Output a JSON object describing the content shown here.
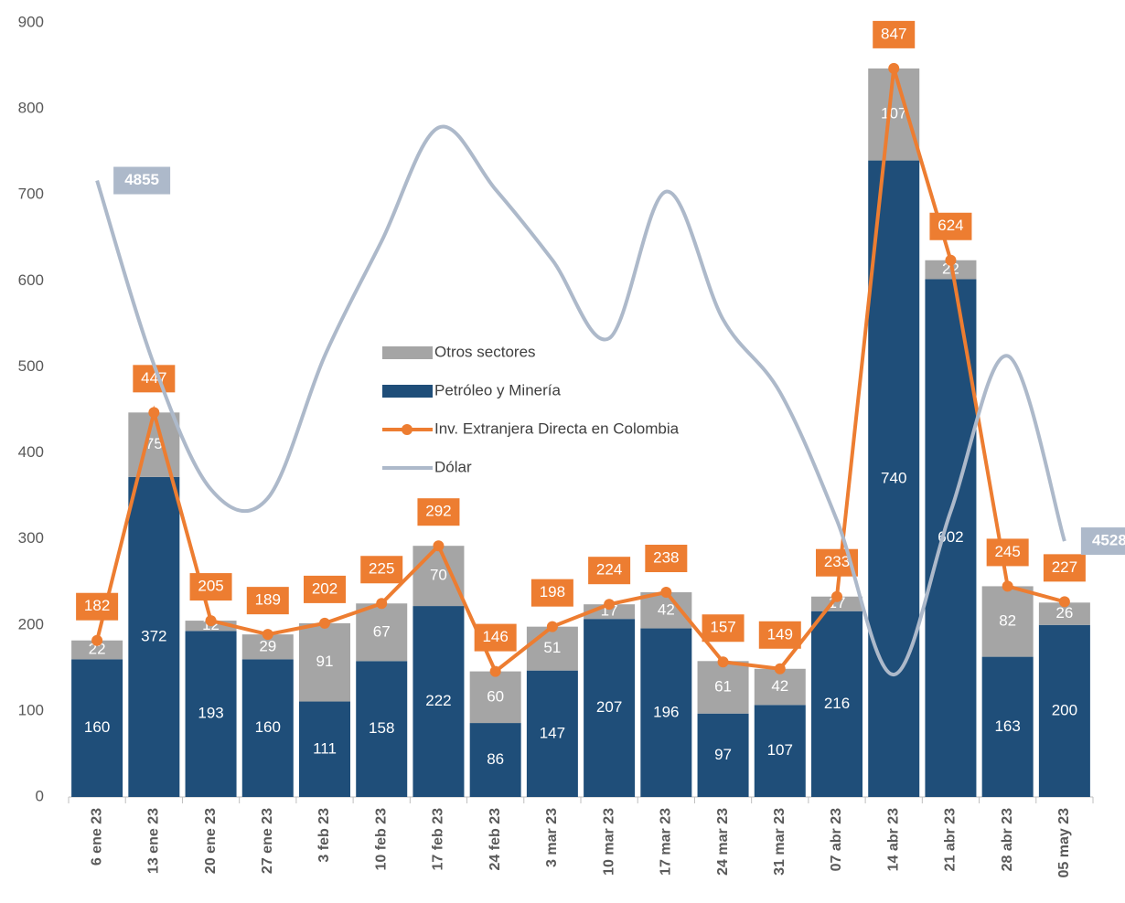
{
  "chart_data": {
    "type": "bar",
    "stacked": true,
    "categories": [
      "6 ene 23",
      "13 ene 23",
      "20 ene 23",
      "27 ene 23",
      "3 feb 23",
      "10 feb 23",
      "17 feb 23",
      "24 feb 23",
      "3 mar 23",
      "10 mar 23",
      "17 mar 23",
      "24 mar 23",
      "31 mar 23",
      "07 abr 23",
      "14 abr 23",
      "21 abr 23",
      "28 abr 23",
      "05 may 23"
    ],
    "series": [
      {
        "name": "Petróleo y Minería",
        "type": "bar",
        "color": "#1f4e79",
        "values": [
          160,
          372,
          193,
          160,
          111,
          158,
          222,
          86,
          147,
          207,
          196,
          97,
          107,
          216,
          740,
          602,
          163,
          200
        ]
      },
      {
        "name": "Otros sectores",
        "type": "bar",
        "color": "#a5a5a5",
        "values": [
          22,
          75,
          12,
          29,
          91,
          67,
          70,
          60,
          51,
          17,
          42,
          61,
          42,
          17,
          107,
          22,
          82,
          26
        ]
      },
      {
        "name": "Inv. Extranjera Directa en Colombia",
        "type": "line",
        "color": "#ed7d31",
        "values": [
          182,
          447,
          205,
          189,
          202,
          225,
          292,
          146,
          198,
          224,
          238,
          157,
          149,
          233,
          847,
          624,
          245,
          227
        ]
      },
      {
        "name": "Dólar",
        "type": "line",
        "axis": "y2",
        "color": "#adb9ca",
        "values": [
          4855,
          4688,
          4575,
          4567,
          4696,
          4800,
          4903,
          4847,
          4783,
          4712,
          4845,
          4729,
          4663,
          4547,
          4407,
          4555,
          4696,
          4528
        ]
      }
    ],
    "ylim": [
      0,
      900
    ],
    "yticks": [
      0,
      100,
      200,
      300,
      400,
      500,
      600,
      700,
      800,
      900
    ],
    "y2lim": [
      4296,
      4998
    ],
    "grid": false
  }
}
